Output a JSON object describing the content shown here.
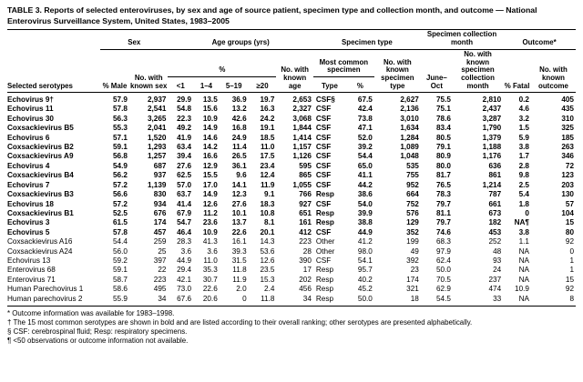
{
  "title": "TABLE 3. Reports of selected enteroviruses, by sex and age of source patient, specimen type and collection month, and outcome — National Enterovirus Surveillance System, United States, 1983–2005",
  "header": {
    "selected_serotypes": "Selected serotypes",
    "groups": {
      "sex": "Sex",
      "age": "Age groups (yrs)",
      "specimen_type": "Specimen type",
      "collection_month": "Specimen collection month",
      "outcome": "Outcome*"
    },
    "sub": {
      "pct_male": "% Male",
      "n_sex": "No. with known sex",
      "age_pct": "%",
      "n_age": "No. with known age",
      "most_common": "Most common specimen",
      "n_specimen": "No. with known specimen type",
      "june_oct": "June–Oct",
      "n_month": "No. with known specimen collection month",
      "pct_fatal": "% Fatal",
      "n_outcome": "No. with known outcome"
    },
    "age_cols": [
      "<1",
      "1–4",
      "5–19",
      "≥20"
    ],
    "type_col": "Type",
    "type_pct_col": "%"
  },
  "rows": [
    {
      "serotype": "Echovirus 9†",
      "bold": true,
      "values": [
        "57.9",
        "2,937",
        "29.9",
        "13.5",
        "36.9",
        "19.7",
        "2,653",
        "CSF§",
        "67.5",
        "2,627",
        "75.5",
        "2,810",
        "0.2",
        "405"
      ]
    },
    {
      "serotype": "Echovirus 11",
      "bold": true,
      "values": [
        "57.8",
        "2,541",
        "54.8",
        "15.6",
        "13.2",
        "16.3",
        "2,327",
        "CSF",
        "42.4",
        "2,136",
        "75.1",
        "2,437",
        "4.6",
        "435"
      ]
    },
    {
      "serotype": "Echovirus 30",
      "bold": true,
      "values": [
        "56.3",
        "3,265",
        "22.3",
        "10.9",
        "42.6",
        "24.2",
        "3,068",
        "CSF",
        "73.8",
        "3,010",
        "78.6",
        "3,287",
        "3.2",
        "310"
      ]
    },
    {
      "serotype": "Coxsackievirus B5",
      "bold": true,
      "values": [
        "55.3",
        "2,041",
        "49.2",
        "14.9",
        "16.8",
        "19.1",
        "1,844",
        "CSF",
        "47.1",
        "1,634",
        "83.4",
        "1,790",
        "1.5",
        "325"
      ]
    },
    {
      "serotype": "Echovirus 6",
      "bold": true,
      "values": [
        "57.1",
        "1,520",
        "41.9",
        "14.6",
        "24.9",
        "18.5",
        "1,414",
        "CSF",
        "52.0",
        "1,284",
        "80.5",
        "1,379",
        "5.9",
        "185"
      ]
    },
    {
      "serotype": "Coxsackievirus B2",
      "bold": true,
      "values": [
        "59.1",
        "1,293",
        "63.4",
        "14.2",
        "11.4",
        "11.0",
        "1,157",
        "CSF",
        "39.2",
        "1,089",
        "79.1",
        "1,188",
        "3.8",
        "263"
      ]
    },
    {
      "serotype": "Coxsackievirus A9",
      "bold": true,
      "values": [
        "56.8",
        "1,257",
        "39.4",
        "16.6",
        "26.5",
        "17.5",
        "1,126",
        "CSF",
        "54.4",
        "1,048",
        "80.9",
        "1,176",
        "1.7",
        "346"
      ]
    },
    {
      "serotype": "Echovirus 4",
      "bold": true,
      "values": [
        "54.9",
        "687",
        "27.6",
        "12.9",
        "36.1",
        "23.4",
        "595",
        "CSF",
        "65.0",
        "535",
        "80.0",
        "636",
        "2.8",
        "72"
      ]
    },
    {
      "serotype": "Coxsackievirus B4",
      "bold": true,
      "values": [
        "56.2",
        "937",
        "62.5",
        "15.5",
        "9.6",
        "12.4",
        "865",
        "CSF",
        "41.1",
        "755",
        "81.7",
        "861",
        "9.8",
        "123"
      ]
    },
    {
      "serotype": "Echovirus 7",
      "bold": true,
      "values": [
        "57.2",
        "1,139",
        "57.0",
        "17.0",
        "14.1",
        "11.9",
        "1,055",
        "CSF",
        "44.2",
        "952",
        "76.5",
        "1,214",
        "2.5",
        "203"
      ]
    },
    {
      "serotype": "Coxsackievirus B3",
      "bold": true,
      "values": [
        "56.6",
        "830",
        "63.7",
        "14.9",
        "12.3",
        "9.1",
        "766",
        "Resp",
        "38.6",
        "664",
        "78.3",
        "787",
        "5.4",
        "130"
      ]
    },
    {
      "serotype": "Echovirus 18",
      "bold": true,
      "values": [
        "57.2",
        "934",
        "41.4",
        "12.6",
        "27.6",
        "18.3",
        "927",
        "CSF",
        "54.0",
        "752",
        "79.7",
        "661",
        "1.8",
        "57"
      ]
    },
    {
      "serotype": "Coxsackievirus B1",
      "bold": true,
      "values": [
        "52.5",
        "676",
        "67.9",
        "11.2",
        "10.1",
        "10.8",
        "651",
        "Resp",
        "39.9",
        "576",
        "81.1",
        "673",
        "0",
        "104"
      ]
    },
    {
      "serotype": "Echovirus 3",
      "bold": true,
      "values": [
        "61.5",
        "174",
        "54.7",
        "23.6",
        "13.7",
        "8.1",
        "161",
        "Resp",
        "38.8",
        "129",
        "79.7",
        "182",
        "NA¶",
        "15"
      ]
    },
    {
      "serotype": "Echovirus 5",
      "bold": true,
      "values": [
        "57.8",
        "457",
        "46.4",
        "10.9",
        "22.6",
        "20.1",
        "412",
        "CSF",
        "44.9",
        "352",
        "74.6",
        "453",
        "3.8",
        "80"
      ]
    },
    {
      "serotype": "Coxsackievirus A16",
      "bold": false,
      "values": [
        "54.4",
        "259",
        "28.3",
        "41.3",
        "16.1",
        "14.3",
        "223",
        "Other",
        "41.2",
        "199",
        "68.3",
        "252",
        "1.1",
        "92"
      ]
    },
    {
      "serotype": "Coxsackievirus A24",
      "bold": false,
      "values": [
        "56.0",
        "25",
        "3.6",
        "3.6",
        "39.3",
        "53.6",
        "28",
        "Other",
        "98.0",
        "49",
        "97.9",
        "48",
        "NA",
        "0"
      ]
    },
    {
      "serotype": "Echovirus 13",
      "bold": false,
      "values": [
        "59.2",
        "397",
        "44.9",
        "11.0",
        "31.5",
        "12.6",
        "390",
        "CSF",
        "54.1",
        "392",
        "62.4",
        "93",
        "NA",
        "1"
      ]
    },
    {
      "serotype": "Enterovirus 68",
      "bold": false,
      "values": [
        "59.1",
        "22",
        "29.4",
        "35.3",
        "11.8",
        "23.5",
        "17",
        "Resp",
        "95.7",
        "23",
        "50.0",
        "24",
        "NA",
        "1"
      ]
    },
    {
      "serotype": "Enterovirus 71",
      "bold": false,
      "values": [
        "58.7",
        "223",
        "42.1",
        "30.7",
        "11.9",
        "15.3",
        "202",
        "Resp",
        "40.2",
        "174",
        "70.5",
        "237",
        "NA",
        "15"
      ]
    },
    {
      "serotype": "Human Parechovirus 1",
      "bold": false,
      "values": [
        "58.6",
        "495",
        "73.0",
        "22.6",
        "2.0",
        "2.4",
        "456",
        "Resp",
        "45.2",
        "321",
        "62.9",
        "474",
        "10.9",
        "92"
      ]
    },
    {
      "serotype": "Human parechovirus 2",
      "bold": false,
      "values": [
        "55.9",
        "34",
        "67.6",
        "20.6",
        "0",
        "11.8",
        "34",
        "Resp",
        "50.0",
        "18",
        "54.5",
        "33",
        "NA",
        "8"
      ]
    }
  ],
  "footnotes": [
    "* Outcome information was available for 1983–1998.",
    "† The 15 most common serotypes are shown in bold and are listed according to their overall ranking; other serotypes are presented alphabetically.",
    "§ CSF: cerebrospinal fluid; Resp: respiratory specimens.",
    "¶ <50 observations or outcome information not available."
  ]
}
